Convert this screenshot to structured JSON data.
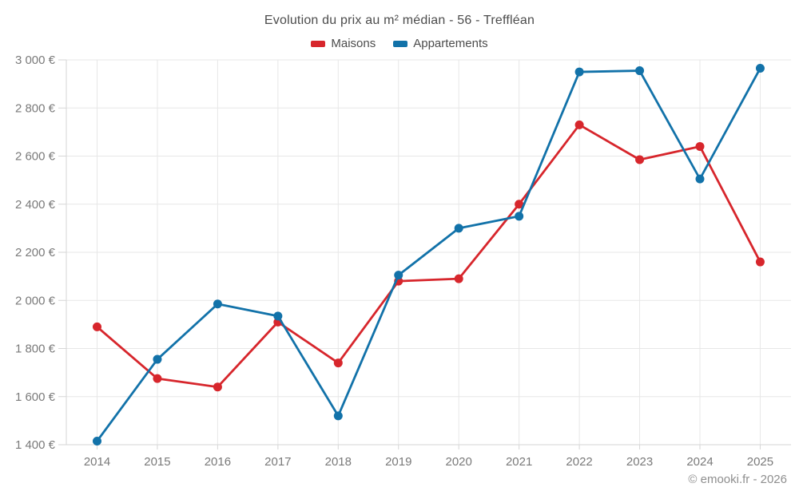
{
  "page": {
    "footer": "© emooki.fr - 2026"
  },
  "chart_data": {
    "type": "line",
    "title": "Evolution du prix au m² médian - 56 - Treffléan",
    "xlabel": "",
    "ylabel": "",
    "categories": [
      "2014",
      "2015",
      "2016",
      "2017",
      "2018",
      "2019",
      "2020",
      "2021",
      "2022",
      "2023",
      "2024",
      "2025"
    ],
    "series": [
      {
        "name": "Maisons",
        "color": "#d7262c",
        "values": [
          1890,
          1675,
          1640,
          1910,
          1740,
          2080,
          2090,
          2400,
          2730,
          2585,
          2640,
          2160
        ]
      },
      {
        "name": "Appartements",
        "color": "#1272a9",
        "values": [
          1415,
          1755,
          1985,
          1935,
          1520,
          2105,
          2300,
          2350,
          2950,
          2955,
          2505,
          2965
        ]
      }
    ],
    "ylim": [
      1400,
      3000
    ],
    "ytick_step": 200,
    "yticks": [
      {
        "value": 1400,
        "label": "1 400 €"
      },
      {
        "value": 1600,
        "label": "1 600 €"
      },
      {
        "value": 1800,
        "label": "1 800 €"
      },
      {
        "value": 2000,
        "label": "2 000 €"
      },
      {
        "value": 2200,
        "label": "2 200 €"
      },
      {
        "value": 2400,
        "label": "2 400 €"
      },
      {
        "value": 2600,
        "label": "2 600 €"
      },
      {
        "value": 2800,
        "label": "2 800 €"
      },
      {
        "value": 3000,
        "label": "3 000 €"
      }
    ],
    "grid": true,
    "legend_position": "top"
  }
}
